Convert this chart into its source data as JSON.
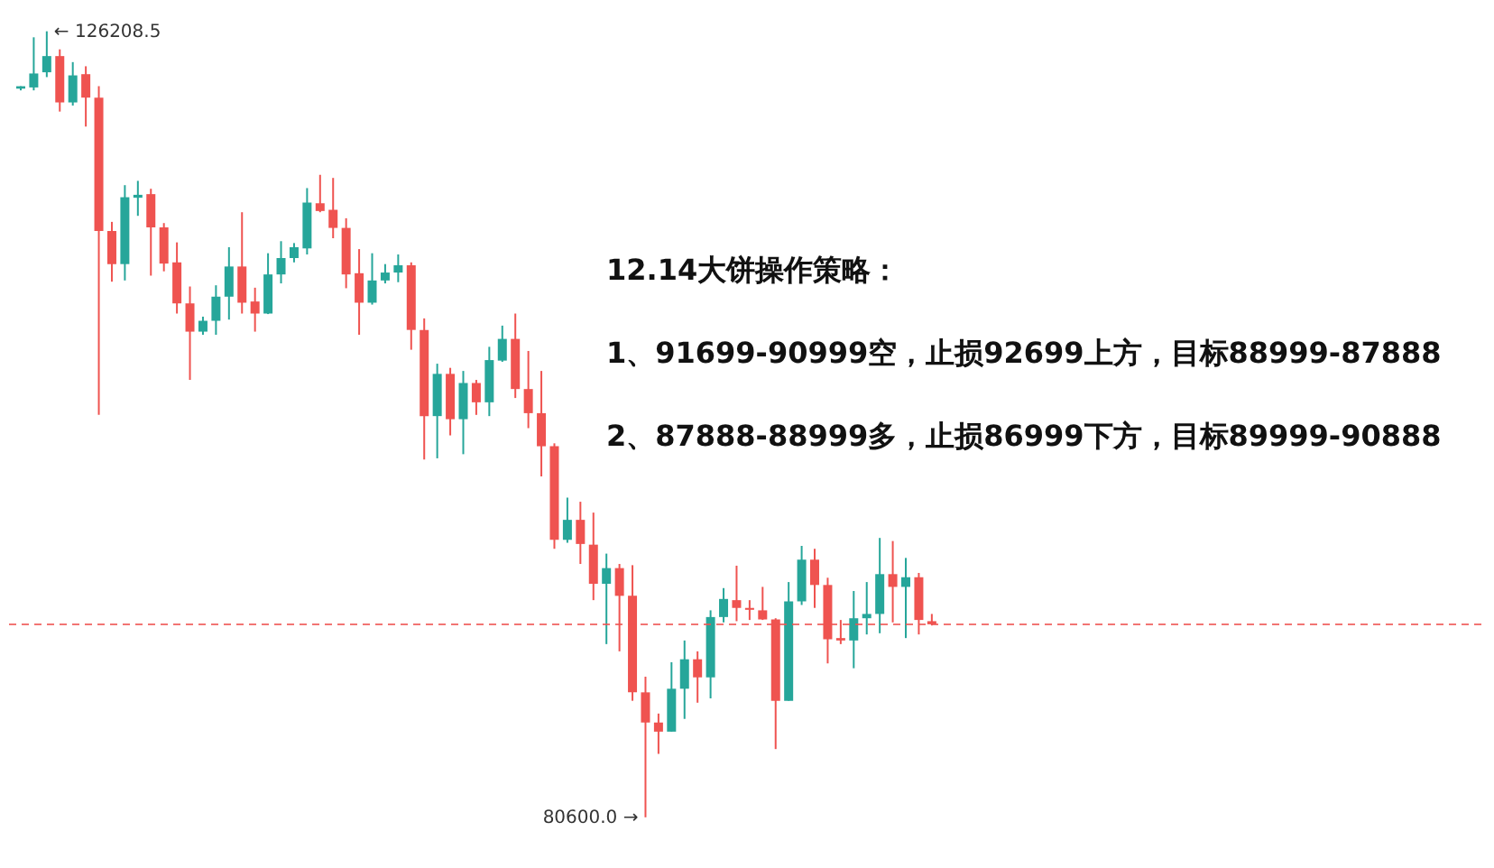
{
  "chart_data": {
    "type": "candlestick",
    "categories": [
      null,
      null,
      null,
      null,
      null,
      null,
      null,
      null,
      null,
      null,
      null,
      null,
      null,
      null,
      null,
      null,
      null,
      null,
      null,
      null,
      null,
      null,
      null,
      null,
      null,
      null,
      null,
      null,
      null,
      null,
      null,
      null,
      null,
      null,
      null,
      null,
      null,
      null,
      null,
      null,
      null,
      null,
      null,
      null,
      null,
      null,
      null,
      null,
      null,
      null,
      null,
      null,
      null,
      null,
      null,
      null,
      null,
      null,
      null,
      null,
      null,
      null,
      null,
      null,
      null,
      null,
      null,
      null,
      null,
      null,
      null
    ],
    "ohlc": [
      [
        122880,
        123020,
        122780,
        123020
      ],
      [
        122950,
        125860,
        122780,
        123760
      ],
      [
        123830,
        126208.5,
        123550,
        124770
      ],
      [
        124770,
        125160,
        121550,
        122080
      ],
      [
        122080,
        124420,
        121900,
        123650
      ],
      [
        123720,
        124180,
        120680,
        122360
      ],
      [
        122360,
        123020,
        103950,
        114620
      ],
      [
        114620,
        115150,
        111680,
        112700
      ],
      [
        112700,
        117280,
        111750,
        116580
      ],
      [
        116550,
        117530,
        115500,
        116720
      ],
      [
        116760,
        117070,
        112030,
        114830
      ],
      [
        114830,
        115080,
        112280,
        112730
      ],
      [
        112800,
        113960,
        109830,
        110420
      ],
      [
        110420,
        111400,
        105980,
        108780
      ],
      [
        108780,
        109650,
        108600,
        109410
      ],
      [
        109410,
        111470,
        108600,
        110810
      ],
      [
        110810,
        113680,
        109480,
        112560
      ],
      [
        112560,
        115710,
        109830,
        110460
      ],
      [
        110530,
        111330,
        108780,
        109830
      ],
      [
        109830,
        113330,
        109800,
        112100
      ],
      [
        112100,
        114030,
        111580,
        113050
      ],
      [
        113050,
        113920,
        112800,
        113680
      ],
      [
        113610,
        117110,
        113260,
        116270
      ],
      [
        116230,
        117880,
        115710,
        115780
      ],
      [
        115850,
        117700,
        114200,
        114800
      ],
      [
        114800,
        115360,
        111300,
        112100
      ],
      [
        112170,
        113570,
        108600,
        110460
      ],
      [
        110460,
        113330,
        110350,
        111750
      ],
      [
        111750,
        112700,
        111580,
        112210
      ],
      [
        112210,
        113260,
        111650,
        112630
      ],
      [
        112630,
        112800,
        107730,
        108880
      ],
      [
        108880,
        109550,
        101360,
        103880
      ],
      [
        103880,
        106920,
        101430,
        106330
      ],
      [
        106330,
        106680,
        102760,
        103700
      ],
      [
        103700,
        106500,
        101670,
        105800
      ],
      [
        105800,
        105980,
        103950,
        104680
      ],
      [
        104680,
        107900,
        103880,
        107130
      ],
      [
        107100,
        109130,
        107030,
        108360
      ],
      [
        108360,
        109830,
        104930,
        105450
      ],
      [
        105450,
        107660,
        103180,
        104050
      ],
      [
        104050,
        106500,
        100380,
        102130
      ],
      [
        102130,
        102300,
        96180,
        96700
      ],
      [
        96700,
        99150,
        96530,
        97860
      ],
      [
        97860,
        98910,
        95300,
        96460
      ],
      [
        96420,
        98280,
        93200,
        94150
      ],
      [
        94150,
        95900,
        90650,
        95060
      ],
      [
        95060,
        95300,
        90230,
        93450
      ],
      [
        93450,
        95230,
        87360,
        87850
      ],
      [
        87850,
        88760,
        80600,
        86100
      ],
      [
        86100,
        86620,
        84280,
        85570
      ],
      [
        85570,
        89600,
        85570,
        88060
      ],
      [
        88060,
        90860,
        86310,
        89770
      ],
      [
        89770,
        90230,
        87250,
        88720
      ],
      [
        88720,
        92610,
        87500,
        92220
      ],
      [
        92220,
        93900,
        91910,
        93270
      ],
      [
        93200,
        95200,
        91980,
        92750
      ],
      [
        92750,
        93200,
        92050,
        92640
      ],
      [
        92610,
        93970,
        92050,
        92080
      ],
      [
        92080,
        92150,
        84560,
        87360
      ],
      [
        87360,
        94250,
        87360,
        93130
      ],
      [
        93130,
        96350,
        92920,
        95550
      ],
      [
        95550,
        96180,
        92750,
        94080
      ],
      [
        94080,
        94500,
        89530,
        90930
      ],
      [
        91000,
        92050,
        90650,
        90860
      ],
      [
        90860,
        93730,
        89250,
        92150
      ],
      [
        92150,
        94250,
        91210,
        92400
      ],
      [
        92400,
        96810,
        91280,
        94710
      ],
      [
        94710,
        96630,
        91910,
        93970
      ],
      [
        93970,
        95650,
        91000,
        94530
      ],
      [
        94530,
        94780,
        91210,
        92050
      ],
      [
        91980,
        92400,
        91730,
        91800
      ]
    ],
    "colors": [
      "#26a69a",
      "#26a69a",
      "#26a69a",
      "#ef5350",
      "#26a69a",
      "#ef5350",
      "#ef5350",
      "#ef5350",
      "#26a69a",
      "#26a69a",
      "#ef5350",
      "#ef5350",
      "#ef5350",
      "#ef5350",
      "#26a69a",
      "#26a69a",
      "#26a69a",
      "#ef5350",
      "#ef5350",
      "#26a69a",
      "#26a69a",
      "#26a69a",
      "#26a69a",
      "#ef5350",
      "#ef5350",
      "#ef5350",
      "#ef5350",
      "#26a69a",
      "#26a69a",
      "#26a69a",
      "#ef5350",
      "#ef5350",
      "#26a69a",
      "#ef5350",
      "#26a69a",
      "#ef5350",
      "#26a69a",
      "#26a69a",
      "#ef5350",
      "#ef5350",
      "#ef5350",
      "#ef5350",
      "#26a69a",
      "#ef5350",
      "#ef5350",
      "#26a69a",
      "#ef5350",
      "#ef5350",
      "#ef5350",
      "#ef5350",
      "#26a69a",
      "#26a69a",
      "#ef5350",
      "#26a69a",
      "#26a69a",
      "#ef5350",
      "#ef5350",
      "#ef5350",
      "#ef5350",
      "#26a69a",
      "#26a69a",
      "#ef5350",
      "#ef5350",
      "#ef5350",
      "#26a69a",
      "#26a69a",
      "#26a69a",
      "#ef5350",
      "#26a69a",
      "#ef5350",
      "#ef5350"
    ],
    "ref_lines": [
      {
        "axis": "y",
        "value": 91800,
        "color": "#ef5350",
        "line_style": "dashed"
      }
    ],
    "annotations": [
      "12.14大饼操作策略：",
      "1、91699-90999空，止损92699上方，目标88999-87888",
      "2、87888-88999多，止损86999下方，目标89999-90888",
      "← 126208.5",
      "80600.0 →"
    ],
    "tick_labels": false,
    "grid": false
  }
}
